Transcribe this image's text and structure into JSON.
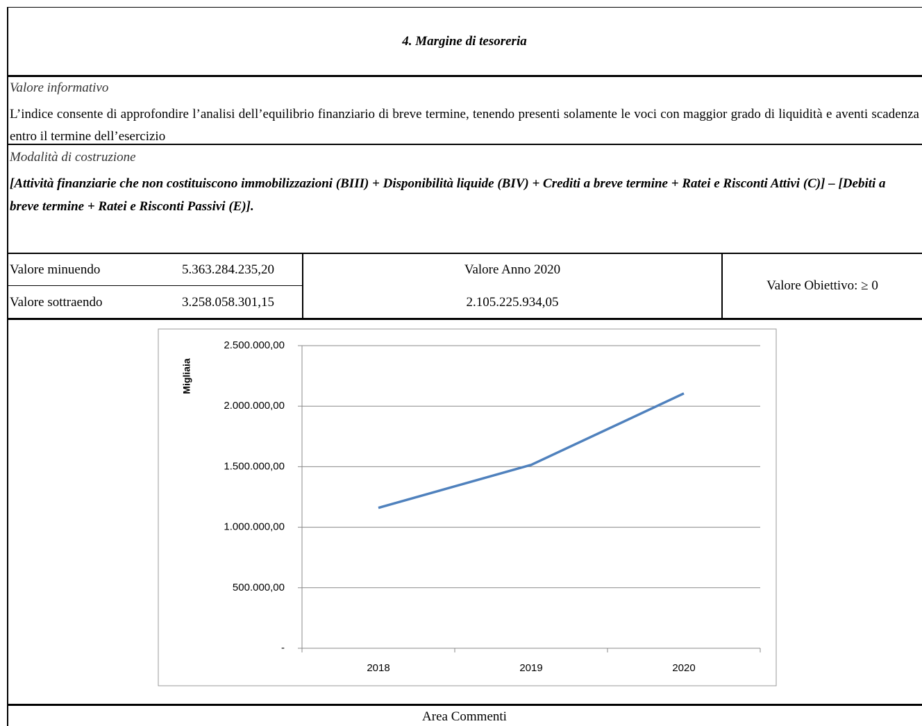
{
  "title": "4. Margine di tesoreria",
  "info": {
    "heading": "Valore informativo",
    "text": "L’indice consente di approfondire l’analisi dell’equilibrio finanziario di breve termine, tenendo presenti solamente le voci con maggior grado di liquidità e aventi scadenza entro il termine dell’esercizio"
  },
  "construction": {
    "heading": "Modalità di costruzione",
    "formula": "[Attività finanziarie che non costituiscono immobilizzazioni (BIII) + Disponibilità liquide (BIV) + Crediti a breve termine + Ratei e Risconti Attivi (C)] – [Debiti a breve termine + Ratei e Risconti Passivi (E)]."
  },
  "table": {
    "rows": [
      [
        "Valore minuendo",
        "5.363.284.235,20"
      ],
      [
        "Valore sottraendo",
        "3.258.058.301,15"
      ]
    ],
    "year_label": "Valore Anno 2020",
    "year_value": "2.105.225.934,05",
    "target": "Valore Obiettivo: ≥ 0"
  },
  "chart_data": {
    "type": "line",
    "y_label": "Migliaia",
    "categories": [
      "2018",
      "2019",
      "2020"
    ],
    "series": [
      {
        "name": "Margine di tesoreria",
        "color": "#4f81bd",
        "values": [
          1160000,
          1515000,
          2105225.93
        ]
      }
    ],
    "ylim": [
      0,
      2500000
    ],
    "yticks": [
      {
        "value": 0,
        "label": "-"
      },
      {
        "value": 500000,
        "label": "500.000,00"
      },
      {
        "value": 1000000,
        "label": "1.000.000,00"
      },
      {
        "value": 1500000,
        "label": "1.500.000,00"
      },
      {
        "value": 2000000,
        "label": "2.000.000,00"
      },
      {
        "value": 2500000,
        "label": "2.500.000,00"
      }
    ],
    "grid": true
  },
  "comments": "Area Commenti"
}
